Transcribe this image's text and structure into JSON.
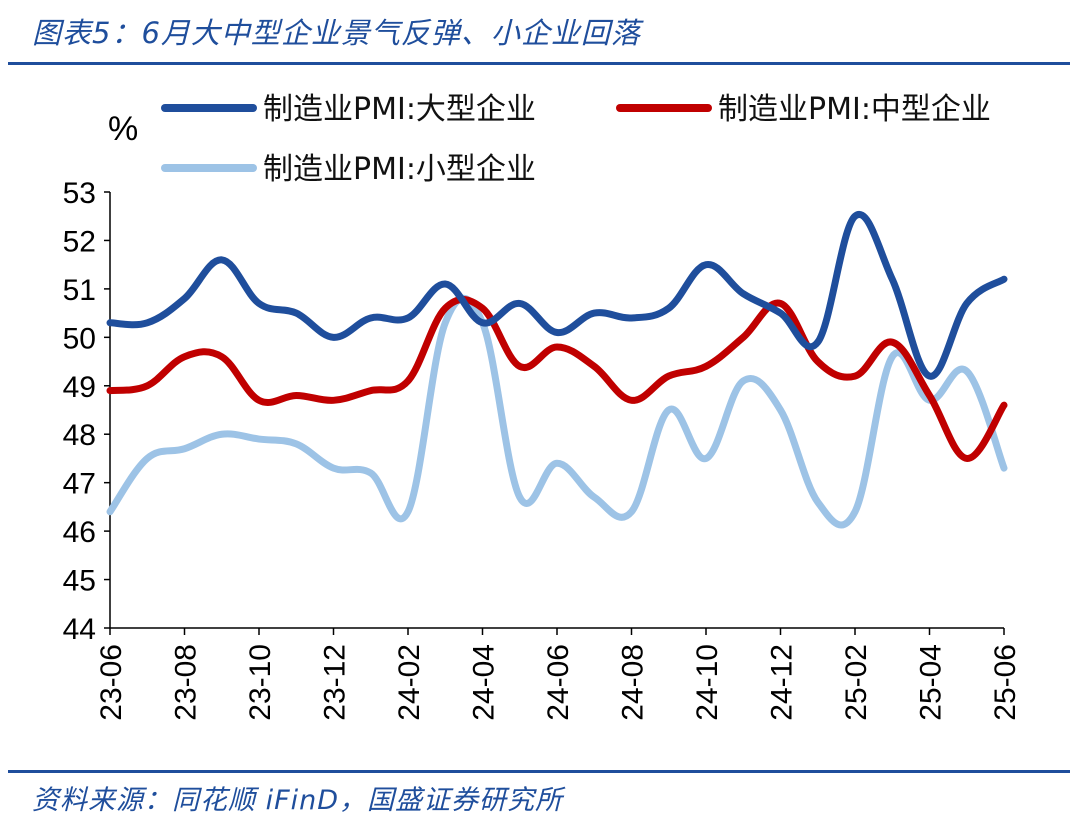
{
  "caption": "图表5：6月大中型企业景气反弹、小企业回落",
  "source": "资料来源：同花顺 iFinD，国盛证券研究所",
  "colors": {
    "large": "#1f4e9c",
    "medium": "#c00000",
    "small": "#9dc3e6",
    "text_accent": "#1f4e9c"
  },
  "chart_data": {
    "type": "line",
    "ylabel": "%",
    "ylim": [
      44,
      53
    ],
    "yticks": [
      44,
      45,
      46,
      47,
      48,
      49,
      50,
      51,
      52,
      53
    ],
    "grid": false,
    "legend_position": "top",
    "x": [
      "23-06",
      "23-07",
      "23-08",
      "23-09",
      "23-10",
      "23-11",
      "23-12",
      "24-01",
      "24-02",
      "24-03",
      "24-04",
      "24-05",
      "24-06",
      "24-07",
      "24-08",
      "24-09",
      "24-10",
      "24-11",
      "24-12",
      "25-01",
      "25-02",
      "25-03",
      "25-04",
      "25-05",
      "25-06"
    ],
    "xtick_labels": [
      "23-06",
      "23-08",
      "23-10",
      "23-12",
      "24-02",
      "24-04",
      "24-06",
      "24-08",
      "24-10",
      "24-12",
      "25-02",
      "25-04",
      "25-06"
    ],
    "series": [
      {
        "name": "制造业PMI:大型企业",
        "color": "#1f4e9c",
        "values": [
          50.3,
          50.3,
          50.8,
          51.6,
          50.7,
          50.5,
          50.0,
          50.4,
          50.4,
          51.1,
          50.3,
          50.7,
          50.1,
          50.5,
          50.4,
          50.6,
          51.5,
          50.9,
          50.5,
          49.9,
          52.5,
          51.2,
          49.2,
          50.7,
          51.2
        ]
      },
      {
        "name": "制造业PMI:中型企业",
        "color": "#c00000",
        "values": [
          48.9,
          49.0,
          49.6,
          49.6,
          48.7,
          48.8,
          48.7,
          48.9,
          49.1,
          50.6,
          50.6,
          49.4,
          49.8,
          49.4,
          48.7,
          49.2,
          49.4,
          50.0,
          50.7,
          49.5,
          49.2,
          49.9,
          48.8,
          47.5,
          48.6
        ]
      },
      {
        "name": "制造业PMI:小型企业",
        "color": "#9dc3e6",
        "values": [
          46.4,
          47.5,
          47.7,
          48.0,
          47.9,
          47.8,
          47.3,
          47.2,
          46.4,
          50.3,
          50.3,
          46.7,
          47.4,
          46.7,
          46.4,
          48.5,
          47.5,
          49.1,
          48.5,
          46.6,
          46.4,
          49.6,
          48.7,
          49.3,
          47.3
        ]
      }
    ]
  }
}
